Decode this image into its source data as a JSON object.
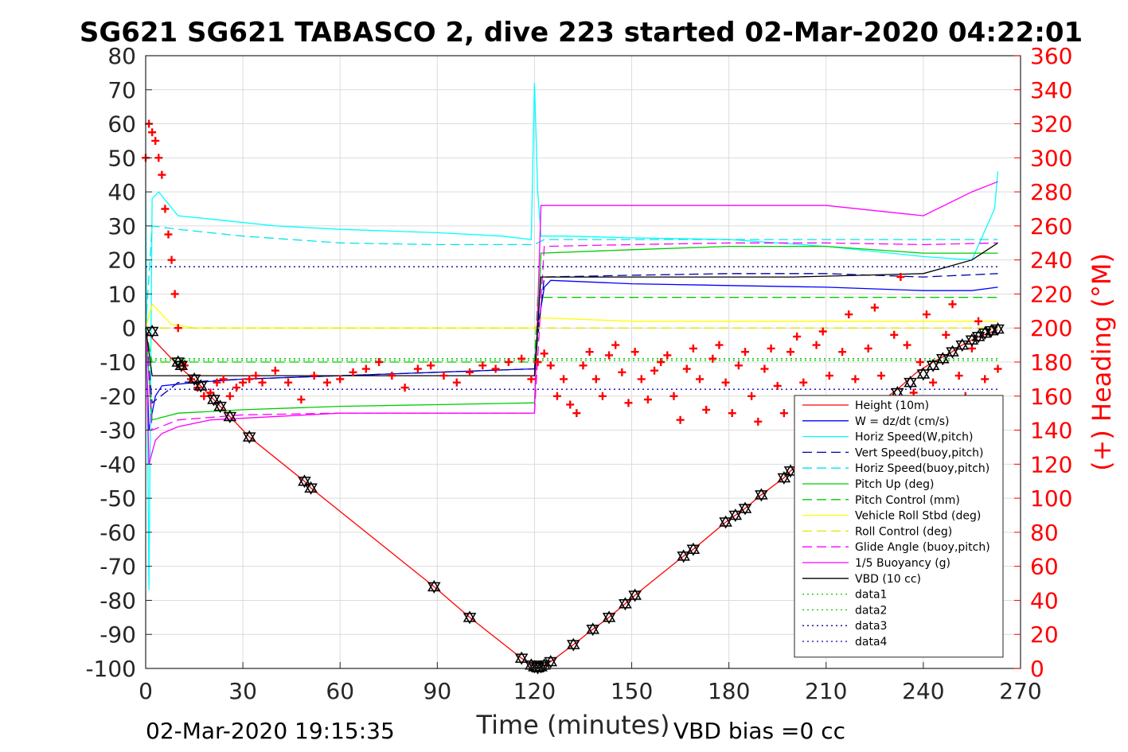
{
  "chart_data": {
    "type": "line",
    "title": "SG621 SG621 TABASCO 2, dive 223 started 02-Mar-2020 04:22:01",
    "xlabel": "Time (minutes)",
    "ylabel_right": "(+) Heading (°M)",
    "footer_left": "02-Mar-2020 19:15:35",
    "footer_right": "VBD bias =0 cc",
    "xlim": [
      0,
      270
    ],
    "ylim": [
      -100,
      80
    ],
    "ylim_right": [
      0,
      360
    ],
    "x_ticks": [
      "0",
      "30",
      "60",
      "90",
      "120",
      "150",
      "180",
      "210",
      "240",
      "270"
    ],
    "y_ticks": [
      "80",
      "70",
      "60",
      "50",
      "40",
      "30",
      "20",
      "10",
      "0",
      "-10",
      "-20",
      "-30",
      "-40",
      "-50",
      "-60",
      "-70",
      "-80",
      "-90",
      "-100"
    ],
    "y_ticks_right": [
      "360",
      "340",
      "320",
      "300",
      "280",
      "260",
      "240",
      "220",
      "200",
      "180",
      "160",
      "140",
      "120",
      "100",
      "80",
      "60",
      "40",
      "20",
      "0"
    ],
    "grid": true,
    "legend_position": "lower-right",
    "series": [
      {
        "name": "Height (10m)",
        "color": "#ff0000",
        "style": "solid",
        "x": [
          0,
          10,
          17,
          22,
          26,
          32,
          49,
          51,
          89,
          100,
          116,
          120,
          121,
          122,
          125,
          132,
          138,
          143,
          148,
          151,
          166,
          169,
          179,
          182,
          185,
          190,
          197,
          199,
          207,
          218,
          232,
          238,
          243,
          248,
          252,
          256,
          260,
          263
        ],
        "y": [
          -1,
          -11,
          -17,
          -22,
          -26,
          -32,
          -45,
          -47,
          -76,
          -85,
          -97,
          -99.5,
          -99.8,
          -99.5,
          -98,
          -93,
          -88.5,
          -85,
          -81,
          -78.5,
          -67,
          -65,
          -57,
          -55,
          -53,
          -49,
          -44,
          -42,
          -36,
          -28,
          -18,
          -13,
          -10,
          -7.5,
          -5,
          -3,
          -1.5,
          -0.5
        ]
      },
      {
        "name": "W = dz/dt (cm/s)",
        "color": "#0000ff",
        "style": "solid",
        "x": [
          0,
          1,
          2,
          3,
          5,
          15,
          30,
          60,
          90,
          119,
          120,
          121,
          123,
          125,
          150,
          180,
          210,
          240,
          255,
          263
        ],
        "y": [
          0,
          -30,
          -25,
          -20,
          -17,
          -16,
          -15,
          -14,
          -13,
          -12,
          -12,
          0,
          12,
          14,
          13,
          12.5,
          12,
          11,
          11,
          12
        ]
      },
      {
        "name": "Horiz Speed(W,pitch)",
        "color": "#00ffff",
        "style": "solid",
        "x": [
          0,
          1,
          2,
          4,
          10,
          20,
          40,
          60,
          90,
          110,
          119,
          120,
          121,
          122,
          124,
          130,
          150,
          180,
          210,
          240,
          255,
          262,
          263
        ],
        "y": [
          40,
          -77,
          38,
          40,
          33,
          32,
          30,
          29,
          28,
          27,
          26,
          72,
          40,
          27,
          27,
          27,
          26.5,
          26,
          24,
          21,
          20,
          35,
          46
        ]
      },
      {
        "name": "Vert Speed(buoy,pitch)",
        "color": "#0000aa",
        "style": "dashed",
        "x": [
          0,
          2,
          10,
          30,
          60,
          90,
          119,
          120,
          123,
          150,
          180,
          210,
          240,
          263
        ],
        "y": [
          0,
          -22,
          -16,
          -15,
          -14,
          -13,
          -12,
          -12,
          15,
          15.5,
          16,
          16,
          15,
          16
        ]
      },
      {
        "name": "Horiz Speed(buoy,pitch)",
        "color": "#00e5e5",
        "style": "dashed",
        "x": [
          0,
          2,
          10,
          30,
          60,
          90,
          119,
          120,
          123,
          150,
          180,
          210,
          240,
          263
        ],
        "y": [
          0,
          30,
          29,
          27,
          25,
          24.5,
          24.5,
          24.5,
          26,
          26,
          26,
          26,
          26,
          26
        ]
      },
      {
        "name": "Pitch Up (deg)",
        "color": "#00cc00",
        "style": "solid",
        "x": [
          0,
          2,
          10,
          30,
          60,
          90,
          119,
          120,
          122,
          150,
          180,
          210,
          240,
          263
        ],
        "y": [
          0,
          -27,
          -25,
          -24,
          -23,
          -22.5,
          -22,
          -22,
          22,
          23,
          24,
          24,
          22,
          22
        ]
      },
      {
        "name": "Pitch Control (mm)",
        "color": "#00cc00",
        "style": "dashed",
        "x": [
          0,
          2,
          30,
          60,
          90,
          119,
          120,
          121,
          150,
          180,
          210,
          240,
          263
        ],
        "y": [
          0,
          -10,
          -10,
          -10,
          -10,
          -10,
          -10,
          9,
          9,
          9,
          9,
          9,
          9
        ]
      },
      {
        "name": "Vehicle Roll Stbd (deg)",
        "color": "#ffff00",
        "style": "solid",
        "x": [
          0,
          2,
          8,
          15,
          30,
          60,
          90,
          119,
          120,
          122,
          150,
          180,
          210,
          240,
          263
        ],
        "y": [
          0,
          7,
          1,
          0,
          0,
          0,
          0,
          0,
          0,
          3,
          2,
          2,
          2,
          2,
          2
        ]
      },
      {
        "name": "Roll Control (deg)",
        "color": "#e5e500",
        "style": "dashed",
        "x": [
          0,
          30,
          60,
          90,
          120,
          150,
          180,
          210,
          240,
          263
        ],
        "y": [
          0,
          0,
          0,
          0,
          0,
          0,
          0,
          0,
          0,
          0
        ]
      },
      {
        "name": "Glide Angle (buoy,pitch)",
        "color": "#ff00ff",
        "style": "dashed",
        "x": [
          0,
          2,
          10,
          30,
          60,
          90,
          119,
          120,
          123,
          150,
          180,
          210,
          240,
          263
        ],
        "y": [
          0,
          -30,
          -27,
          -25.5,
          -25,
          -25,
          -25,
          -25,
          24,
          24.5,
          25,
          25,
          24.5,
          25
        ]
      },
      {
        "name": "1/5 Buoyancy (g)",
        "color": "#ff00ff",
        "style": "solid",
        "x": [
          0,
          1,
          3,
          5,
          10,
          20,
          60,
          119,
          120,
          122,
          150,
          180,
          210,
          230,
          240,
          255,
          263
        ],
        "y": [
          0,
          -40,
          -33,
          -31,
          -29,
          -27,
          -25,
          -25,
          -25,
          36,
          36,
          36,
          36,
          34,
          33,
          40,
          43
        ]
      },
      {
        "name": "VBD (10 cc)",
        "color": "#000000",
        "style": "solid",
        "x": [
          0,
          2,
          60,
          119,
          120,
          122,
          150,
          200,
          240,
          255,
          263
        ],
        "y": [
          0,
          -14,
          -14,
          -14,
          -14,
          15,
          15,
          15,
          16,
          20,
          25
        ]
      },
      {
        "name": "data1",
        "color": "#00cc00",
        "style": "dotted",
        "x": [
          0,
          263
        ],
        "y": [
          -9,
          -9
        ]
      },
      {
        "name": "data2",
        "color": "#00cc00",
        "style": "dotted",
        "x": [
          0,
          263
        ],
        "y": [
          -9.5,
          -9.5
        ]
      },
      {
        "name": "data3",
        "color": "#000088",
        "style": "dotted",
        "x": [
          0,
          263
        ],
        "y": [
          18,
          18
        ]
      },
      {
        "name": "data4",
        "color": "#0000cc",
        "style": "dotted",
        "x": [
          0,
          263
        ],
        "y": [
          -18,
          -18
        ]
      }
    ],
    "heading_series": {
      "name": "(+) Heading (°M)",
      "color": "#ff0000",
      "marker": "+",
      "x": [
        0,
        1,
        2,
        3,
        4,
        5,
        6,
        7,
        8,
        9,
        10,
        12,
        14,
        16,
        18,
        20,
        22,
        24,
        26,
        28,
        30,
        32,
        34,
        36,
        40,
        44,
        48,
        52,
        56,
        60,
        64,
        68,
        72,
        76,
        80,
        84,
        88,
        92,
        96,
        100,
        104,
        108,
        112,
        116,
        119,
        121,
        123,
        125,
        127,
        129,
        131,
        133,
        135,
        137,
        139,
        141,
        143,
        145,
        147,
        149,
        151,
        153,
        155,
        157,
        159,
        161,
        163,
        165,
        167,
        169,
        171,
        173,
        175,
        177,
        179,
        181,
        183,
        185,
        187,
        189,
        191,
        193,
        195,
        197,
        199,
        201,
        203,
        205,
        207,
        209,
        211,
        213,
        215,
        217,
        219,
        221,
        223,
        225,
        227,
        229,
        231,
        233,
        235,
        237,
        239,
        241,
        243,
        245,
        247,
        249,
        251,
        253,
        255,
        257,
        259,
        261,
        263
      ],
      "y": [
        300,
        320,
        315,
        310,
        300,
        290,
        270,
        255,
        240,
        220,
        200,
        178,
        170,
        165,
        160,
        162,
        168,
        170,
        160,
        165,
        168,
        170,
        172,
        168,
        175,
        168,
        158,
        172,
        168,
        170,
        174,
        176,
        180,
        172,
        165,
        176,
        178,
        172,
        168,
        174,
        178,
        176,
        180,
        182,
        170,
        180,
        185,
        178,
        160,
        170,
        155,
        150,
        178,
        186,
        170,
        160,
        184,
        190,
        174,
        156,
        186,
        170,
        158,
        175,
        180,
        184,
        160,
        146,
        176,
        188,
        170,
        152,
        182,
        190,
        168,
        150,
        178,
        186,
        160,
        145,
        176,
        188,
        166,
        150,
        186,
        195,
        168,
        156,
        190,
        198,
        172,
        150,
        186,
        208,
        170,
        156,
        188,
        212,
        172,
        158,
        196,
        230,
        190,
        162,
        180,
        208,
        168,
        158,
        196,
        214,
        172,
        160,
        188,
        204,
        170,
        158,
        176
      ]
    },
    "markers_triangles": {
      "x": [
        2,
        10,
        11,
        15,
        17,
        21,
        23,
        26,
        32,
        49,
        51,
        89,
        100,
        116,
        119,
        120,
        121,
        122,
        123,
        125,
        132,
        138,
        143,
        148,
        151,
        166,
        169,
        179,
        182,
        185,
        190,
        197,
        199,
        232,
        236,
        240,
        243,
        246,
        249,
        252,
        255,
        257,
        259,
        261,
        263
      ],
      "y": [
        -1,
        -10,
        -11,
        -15,
        -17,
        -21,
        -23,
        -26,
        -32,
        -45,
        -47,
        -76,
        -85,
        -97,
        -99,
        -99.5,
        -99.8,
        -99.5,
        -99,
        -98,
        -93,
        -88.5,
        -85,
        -81,
        -78.5,
        -67,
        -65,
        -57,
        -55,
        -53,
        -49,
        -44,
        -42,
        -19,
        -16,
        -13.5,
        -11,
        -9,
        -7,
        -5,
        -3.5,
        -2.5,
        -1.5,
        -0.8,
        -0.3
      ]
    }
  }
}
